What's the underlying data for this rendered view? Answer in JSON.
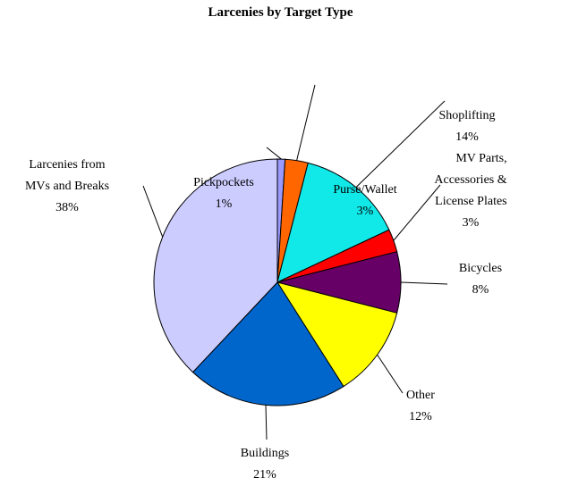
{
  "chart_data": {
    "type": "pie",
    "title": "Larcenies by Target Type",
    "categories": [
      "Pickpockets",
      "Purse/Wallet",
      "Shoplifting",
      "MV Parts,\nAccessories &\nLicense Plates",
      "Bicycles",
      "Other",
      "Buildings",
      "Larcenies from\nMVs and Breaks"
    ],
    "values": [
      1,
      3,
      14,
      3,
      8,
      12,
      21,
      38
    ],
    "value_labels": [
      "1%",
      "3%",
      "14%",
      "3%",
      "8%",
      "12%",
      "21%",
      "38%"
    ],
    "colors": [
      "#9999ff",
      "#ff6600",
      "#11e8e8",
      "#ff0000",
      "#660066",
      "#ffff00",
      "#0066cc",
      "#ccccff"
    ]
  }
}
